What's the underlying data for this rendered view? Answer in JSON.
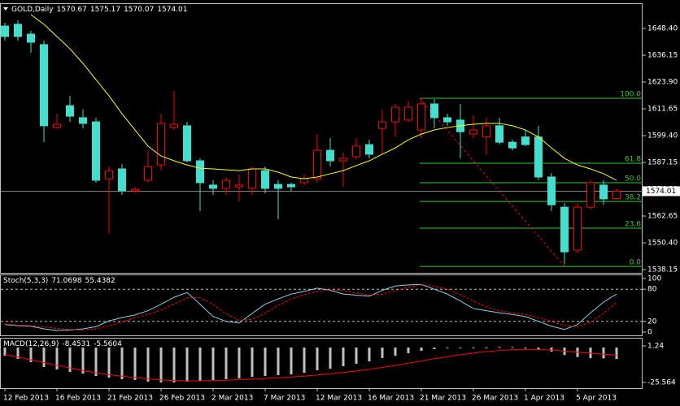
{
  "chart_data": [
    {
      "type": "candlestick",
      "title": "GOLD,Daily",
      "categories": [
        "12 Feb 2013",
        null,
        null,
        null,
        "16 Feb 2013",
        null,
        null,
        null,
        "21 Feb 2013",
        null,
        null,
        null,
        "26 Feb 2013",
        null,
        null,
        null,
        "2 Mar 2013",
        null,
        null,
        null,
        "7 Mar 2013",
        null,
        null,
        null,
        "12 Mar 2013",
        null,
        null,
        null,
        "16 Mar 2013",
        null,
        null,
        null,
        "21 Mar 2013",
        null,
        null,
        null,
        "26 Mar 2013",
        null,
        null,
        null,
        "1 Apr 2013",
        null,
        null,
        null,
        "5 Apr 2013",
        null,
        null,
        null
      ],
      "open": [
        1649.5,
        1650.3,
        1645.8,
        1641.0,
        1603.1,
        1613.1,
        1607.6,
        1605.7,
        1579.7,
        1584.2,
        1574.2,
        1579.0,
        1586.0,
        1603.1,
        1603.9,
        1587.9,
        1576.8,
        1575.3,
        1576.0,
        1575.3,
        1583.4,
        1577.1,
        1577.1,
        1577.9,
        1579.7,
        1592.7,
        1587.9,
        1589.8,
        1595.3,
        1602.7,
        1605.7,
        1606.5,
        1602.0,
        1613.9,
        1607.6,
        1606.5,
        1600.1,
        1598.8,
        1603.9,
        1596.4,
        1598.8,
        1598.8,
        1580.5,
        1566.7,
        1547.1,
        1566.7,
        1576.8,
        1570.67
      ],
      "high": [
        1651.0,
        1652.1,
        1647.3,
        1642.8,
        1609.4,
        1617.6,
        1611.3,
        1607.6,
        1585.3,
        1586.4,
        1576.0,
        1592.7,
        1609.4,
        1619.8,
        1605.7,
        1589.0,
        1579.0,
        1580.5,
        1581.6,
        1585.3,
        1585.3,
        1579.0,
        1577.9,
        1581.6,
        1600.1,
        1598.3,
        1591.6,
        1598.3,
        1597.5,
        1611.3,
        1613.9,
        1615.0,
        1616.8,
        1616.1,
        1609.4,
        1613.9,
        1608.7,
        1607.6,
        1607.6,
        1597.5,
        1602.0,
        1603.9,
        1582.3,
        1568.6,
        1568.6,
        1579.0,
        1579.0,
        1575.17
      ],
      "low": [
        1642.8,
        1642.8,
        1637.3,
        1596.4,
        1602.7,
        1605.7,
        1602.7,
        1577.9,
        1554.9,
        1572.3,
        1573.4,
        1577.9,
        1583.4,
        1602.0,
        1587.2,
        1564.9,
        1572.3,
        1572.3,
        1569.3,
        1572.3,
        1573.0,
        1561.2,
        1574.2,
        1576.8,
        1577.9,
        1585.3,
        1576.0,
        1588.6,
        1589.0,
        1590.9,
        1598.8,
        1605.7,
        1598.3,
        1602.7,
        1603.9,
        1589.0,
        1598.3,
        1590.9,
        1595.3,
        1592.7,
        1594.6,
        1579.0,
        1564.9,
        1540.7,
        1545.6,
        1565.6,
        1567.8,
        1570.07
      ],
      "close": [
        1644.7,
        1644.7,
        1642.1,
        1603.9,
        1604.6,
        1608.3,
        1605.0,
        1579.0,
        1583.4,
        1574.2,
        1574.9,
        1585.3,
        1605.0,
        1604.6,
        1587.9,
        1577.9,
        1575.3,
        1579.0,
        1576.8,
        1584.2,
        1575.3,
        1575.3,
        1576.0,
        1579.7,
        1592.7,
        1587.9,
        1589.0,
        1594.6,
        1590.9,
        1605.7,
        1612.4,
        1612.4,
        1613.9,
        1607.6,
        1605.7,
        1601.2,
        1602.0,
        1603.9,
        1596.4,
        1593.8,
        1595.3,
        1580.5,
        1567.8,
        1546.3,
        1566.7,
        1577.9,
        1570.5,
        1574.01
      ],
      "bull_color": "#ff0000",
      "bear_color": "#40e0d0",
      "series": [
        {
          "type": "line",
          "color": "#ffff00",
          "values": [
            null,
            null,
            1654.7,
            1650.3,
            1644.7,
            1639.1,
            1632.4,
            1625.0,
            1617.6,
            1609.4,
            1602.0,
            1594.6,
            1590.1,
            1587.9,
            1586.0,
            1584.5,
            1584.2,
            1583.8,
            1583.4,
            1584.2,
            1584.2,
            1582.7,
            1580.5,
            1579.7,
            1580.5,
            1582.0,
            1583.4,
            1585.7,
            1587.9,
            1590.9,
            1593.8,
            1597.5,
            1600.1,
            1602.0,
            1603.1,
            1603.9,
            1604.6,
            1605.0,
            1605.0,
            1603.9,
            1602.0,
            1598.8,
            1593.8,
            1589.0,
            1586.0,
            1584.2,
            1582.0,
            1579.0
          ]
        }
      ],
      "fib_levels": [
        {
          "label": "100.0",
          "price": 1616.5
        },
        {
          "label": "61.8",
          "price": 1586.8
        },
        {
          "label": "50.0",
          "price": 1577.9
        },
        {
          "label": "38.2",
          "price": 1569.3
        },
        {
          "label": "23.6",
          "price": 1557.1
        },
        {
          "label": "0.0",
          "price": 1539.6
        }
      ],
      "fib_color": "#32cd32",
      "trendline_color": "#ff0000",
      "ylim": [
        1536.7,
        1659.9
      ],
      "yticks": [
        {
          "value": 1648.4,
          "label": "1648.40"
        },
        {
          "value": 1636.15,
          "label": "1636.15"
        },
        {
          "value": 1623.9,
          "label": "1623.90"
        },
        {
          "value": 1611.65,
          "label": "1611.65"
        },
        {
          "value": 1599.4,
          "label": "1599.40"
        },
        {
          "value": 1587.15,
          "label": "1587.15"
        },
        {
          "value": 1574.9,
          "label": "1574.90"
        },
        {
          "value": 1562.65,
          "label": "1562.65"
        },
        {
          "value": 1550.4,
          "label": "1550.40"
        },
        {
          "value": 1538.15,
          "label": "1538.15"
        }
      ]
    },
    {
      "type": "line",
      "title": "Stoch(5,3,3)",
      "series": [
        {
          "type": "line",
          "color": "#87ceeb",
          "values": [
            14,
            12,
            11,
            6,
            3,
            4,
            6,
            10,
            21,
            27,
            32,
            40,
            52,
            65,
            74,
            52,
            29,
            20,
            17,
            35,
            52,
            62,
            71,
            76,
            82,
            78,
            71,
            69,
            67,
            78,
            86,
            88,
            89,
            80,
            71,
            58,
            44,
            40,
            36,
            33,
            29,
            20,
            11,
            5,
            14,
            36,
            56,
            71.0698
          ]
        },
        {
          "type": "line",
          "dash": true,
          "color": "#ff0000",
          "values": [
            15,
            13,
            12,
            10,
            7,
            5,
            4,
            6,
            12,
            19,
            27,
            33,
            41,
            52,
            64,
            64,
            52,
            34,
            22,
            24,
            35,
            50,
            62,
            70,
            76,
            79,
            77,
            73,
            69,
            71,
            77,
            84,
            88,
            86,
            80,
            70,
            58,
            47,
            40,
            36,
            33,
            27,
            20,
            12,
            10,
            18,
            35,
            55.4382
          ]
        }
      ],
      "ylim": [
        -6.1,
        107.6
      ],
      "yticks": [
        100,
        80,
        20,
        0
      ],
      "grid": "dashed"
    },
    {
      "type": "bar",
      "title": "MACD(12,26,9)",
      "series": [
        {
          "type": "bar",
          "color": "#c0c0c0",
          "values": [
            -6.0,
            -8.3,
            -10.7,
            -14.3,
            -16.1,
            -17.9,
            -19.1,
            -20.9,
            -22.1,
            -23.2,
            -23.8,
            -25.0,
            -25.6,
            -25.6,
            -25.0,
            -24.4,
            -23.8,
            -23.2,
            -22.6,
            -21.5,
            -20.9,
            -20.3,
            -19.7,
            -18.5,
            -16.7,
            -15.5,
            -13.7,
            -11.9,
            -10.1,
            -7.7,
            -6.0,
            -4.2,
            -2.4,
            -1.2,
            -0.6,
            -0.6,
            -0.3,
            -0.2,
            0.4,
            0.3,
            -0.2,
            -1.5,
            -3.0,
            -5.5,
            -7.0,
            -7.8,
            -8.0,
            -8.4531
          ]
        },
        {
          "type": "line",
          "color": "#ff0000",
          "values": [
            -5,
            -7,
            -9,
            -11,
            -13,
            -15,
            -17,
            -18.5,
            -20,
            -21,
            -22,
            -23,
            -23.8,
            -24.2,
            -24.4,
            -24.4,
            -24.2,
            -24,
            -23.6,
            -23.2,
            -22.7,
            -22.2,
            -21.6,
            -21,
            -20.2,
            -19.3,
            -18.3,
            -17.2,
            -16,
            -14.6,
            -13.1,
            -11.5,
            -9.9,
            -8.2,
            -6.7,
            -5.3,
            -4.1,
            -3.0,
            -2.2,
            -1.6,
            -1.3,
            -1.4,
            -1.8,
            -2.6,
            -3.4,
            -4.2,
            -4.9,
            -5.5604
          ]
        }
      ],
      "ylim": [
        -29.8,
        7.15
      ],
      "yticks": [
        1.24,
        -25.564
      ]
    }
  ]
}
